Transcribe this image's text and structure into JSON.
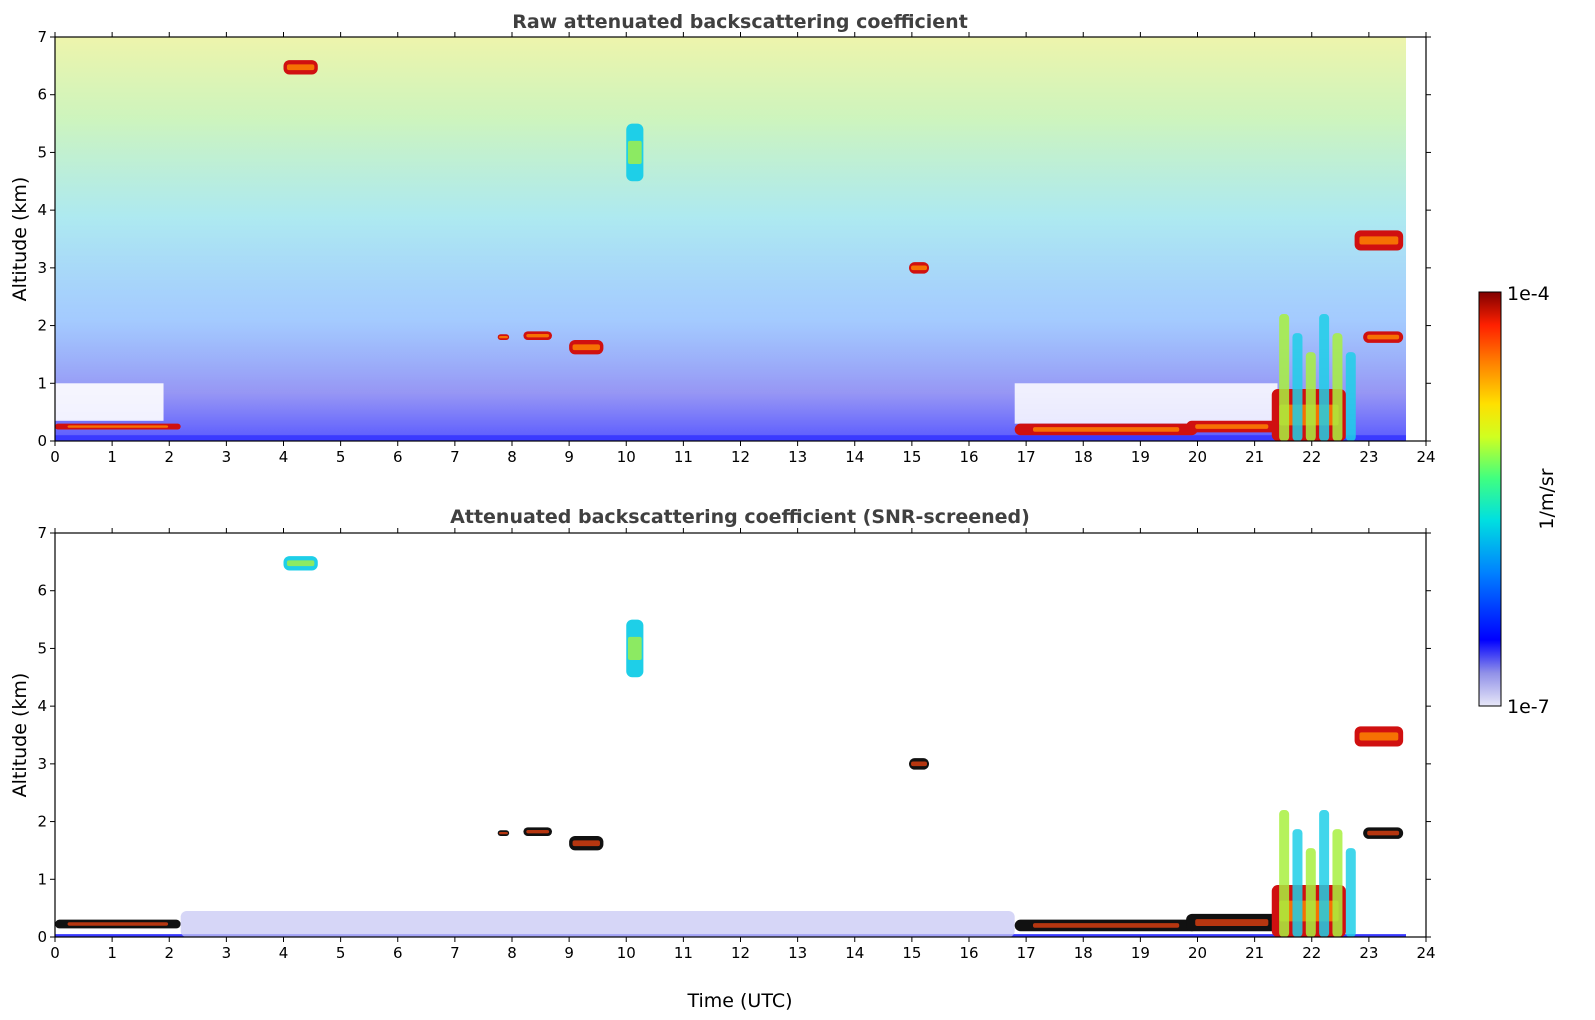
{
  "chart_data": [
    {
      "type": "heatmap",
      "title": "Raw attenuated backscattering coefficient",
      "xlabel": "",
      "ylabel": "Altitude (km)",
      "xlim": [
        0,
        24
      ],
      "ylim": [
        0,
        7
      ],
      "xticks": [
        "0",
        "1",
        "2",
        "3",
        "4",
        "5",
        "6",
        "7",
        "8",
        "9",
        "10",
        "11",
        "12",
        "13",
        "14",
        "15",
        "16",
        "17",
        "18",
        "19",
        "20",
        "21",
        "22",
        "23",
        "24"
      ],
      "yticks": [
        "0",
        "1",
        "2",
        "3",
        "4",
        "5",
        "6",
        "7"
      ],
      "data_end_hour": 23.65,
      "features": [
        {
          "kind": "boundary-layer-top",
          "x0": 0.0,
          "x1": 2.2,
          "y0": 0.2,
          "y1": 0.3,
          "level": "high"
        },
        {
          "kind": "boundary-layer-top",
          "x0": 16.8,
          "x1": 20.0,
          "y0": 0.1,
          "y1": 0.3,
          "level": "high"
        },
        {
          "kind": "boundary-layer-top",
          "x0": 19.8,
          "x1": 21.4,
          "y0": 0.15,
          "y1": 0.35,
          "level": "high"
        },
        {
          "kind": "cloud",
          "x0": 4.0,
          "x1": 4.6,
          "y0": 6.35,
          "y1": 6.6,
          "level": "high"
        },
        {
          "kind": "cloud",
          "x0": 7.75,
          "x1": 7.95,
          "y0": 1.75,
          "y1": 1.85,
          "level": "high"
        },
        {
          "kind": "cloud",
          "x0": 8.2,
          "x1": 8.7,
          "y0": 1.75,
          "y1": 1.9,
          "level": "high"
        },
        {
          "kind": "cloud",
          "x0": 9.0,
          "x1": 9.6,
          "y0": 1.5,
          "y1": 1.75,
          "level": "high"
        },
        {
          "kind": "cloud",
          "x0": 14.95,
          "x1": 15.3,
          "y0": 2.9,
          "y1": 3.1,
          "level": "high"
        },
        {
          "kind": "cloud",
          "x0": 21.3,
          "x1": 22.6,
          "y0": 0.0,
          "y1": 0.9,
          "level": "high"
        },
        {
          "kind": "cloud",
          "x0": 22.75,
          "x1": 23.6,
          "y0": 3.3,
          "y1": 3.65,
          "level": "high"
        },
        {
          "kind": "cloud",
          "x0": 22.9,
          "x1": 23.6,
          "y0": 1.7,
          "y1": 1.9,
          "level": "high"
        },
        {
          "kind": "precipitation-streaks",
          "x0": 21.4,
          "x1": 22.8,
          "y0": 0.0,
          "y1": 2.2,
          "level": "medium"
        },
        {
          "kind": "virga",
          "x0": 10.0,
          "x1": 10.3,
          "y0": 4.5,
          "y1": 5.5,
          "level": "medium"
        }
      ]
    },
    {
      "type": "heatmap",
      "title": "Attenuated backscattering coefficient (SNR-screened)",
      "xlabel": "Time (UTC)",
      "ylabel": "Altitude (km)",
      "xlim": [
        0,
        24
      ],
      "ylim": [
        0,
        7
      ],
      "xticks": [
        "0",
        "1",
        "2",
        "3",
        "4",
        "5",
        "6",
        "7",
        "8",
        "9",
        "10",
        "11",
        "12",
        "13",
        "14",
        "15",
        "16",
        "17",
        "18",
        "19",
        "20",
        "21",
        "22",
        "23",
        "24"
      ],
      "yticks": [
        "0",
        "1",
        "2",
        "3",
        "4",
        "5",
        "6",
        "7"
      ],
      "data_end_hour": 23.65,
      "features": [
        {
          "kind": "boundary-layer-top",
          "x0": 0.0,
          "x1": 2.2,
          "y0": 0.15,
          "y1": 0.3,
          "level": "saturated"
        },
        {
          "kind": "aerosol-layer",
          "x0": 2.2,
          "x1": 16.8,
          "y0": 0.0,
          "y1": 0.45,
          "level": "low"
        },
        {
          "kind": "boundary-layer-top",
          "x0": 16.8,
          "x1": 20.0,
          "y0": 0.1,
          "y1": 0.3,
          "level": "saturated"
        },
        {
          "kind": "boundary-layer-top",
          "x0": 19.8,
          "x1": 21.4,
          "y0": 0.1,
          "y1": 0.4,
          "level": "saturated"
        },
        {
          "kind": "cloud",
          "x0": 4.0,
          "x1": 4.6,
          "y0": 6.35,
          "y1": 6.6,
          "level": "medium"
        },
        {
          "kind": "cloud",
          "x0": 7.75,
          "x1": 7.95,
          "y0": 1.75,
          "y1": 1.85,
          "level": "saturated"
        },
        {
          "kind": "cloud",
          "x0": 8.2,
          "x1": 8.7,
          "y0": 1.75,
          "y1": 1.9,
          "level": "saturated"
        },
        {
          "kind": "cloud",
          "x0": 9.0,
          "x1": 9.6,
          "y0": 1.5,
          "y1": 1.75,
          "level": "saturated"
        },
        {
          "kind": "cloud",
          "x0": 14.95,
          "x1": 15.3,
          "y0": 2.9,
          "y1": 3.1,
          "level": "saturated"
        },
        {
          "kind": "cloud",
          "x0": 21.3,
          "x1": 22.6,
          "y0": 0.0,
          "y1": 0.9,
          "level": "high"
        },
        {
          "kind": "cloud",
          "x0": 22.75,
          "x1": 23.6,
          "y0": 3.3,
          "y1": 3.65,
          "level": "high"
        },
        {
          "kind": "cloud",
          "x0": 22.9,
          "x1": 23.6,
          "y0": 1.7,
          "y1": 1.9,
          "level": "saturated"
        },
        {
          "kind": "precipitation-streaks",
          "x0": 21.4,
          "x1": 22.8,
          "y0": 0.0,
          "y1": 2.2,
          "level": "medium"
        },
        {
          "kind": "virga",
          "x0": 10.0,
          "x1": 10.3,
          "y0": 4.5,
          "y1": 5.5,
          "level": "medium"
        }
      ]
    }
  ],
  "colorbar": {
    "label": "1/m/sr",
    "max_label": "1e-4",
    "min_label": "1e-7",
    "scale": "log",
    "colormap": [
      "#e8e8f8",
      "#9090e8",
      "#0000ff",
      "#0080ff",
      "#00e0e0",
      "#40ff80",
      "#d0ff20",
      "#ffe000",
      "#ff8000",
      "#ff2000",
      "#800000"
    ]
  }
}
